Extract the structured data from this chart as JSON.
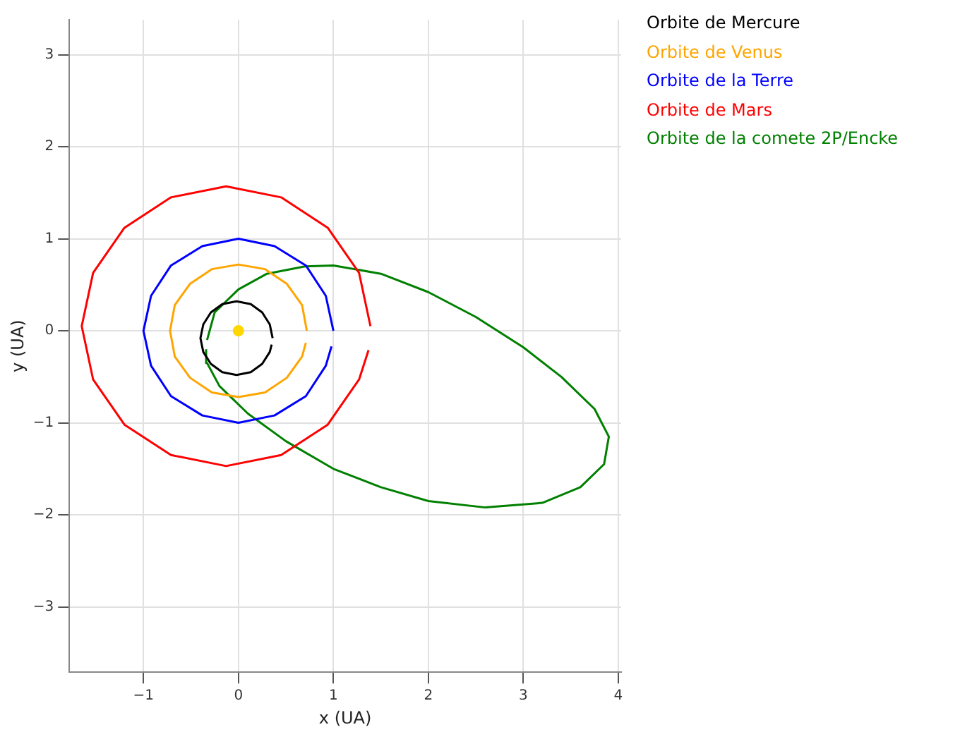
{
  "chart_data": {
    "type": "line",
    "xlabel": "x (UA)",
    "ylabel": "y (UA)",
    "xlim": [
      -1.78,
      4.03
    ],
    "ylim": [
      -3.71,
      3.38
    ],
    "xticks": [
      {
        "value": -1,
        "label": "−1"
      },
      0,
      1,
      2,
      3,
      4
    ],
    "yticks": [
      {
        "value": -3,
        "label": "−3"
      },
      {
        "value": -2,
        "label": "−2"
      },
      {
        "value": -1,
        "label": "−1"
      },
      0,
      1,
      2,
      3
    ],
    "grid": true,
    "marker": "none",
    "line_style": "solid",
    "series": [
      {
        "name": "Orbite de Mercure",
        "color": "#000000",
        "x": [
          0.36,
          0.33,
          0.25,
          0.13,
          -0.02,
          -0.17,
          -0.29,
          -0.37,
          -0.4,
          -0.37,
          -0.29,
          -0.17,
          -0.02,
          0.13,
          0.25,
          0.33,
          0.35
        ],
        "values": [
          -0.08,
          0.07,
          0.2,
          0.29,
          0.32,
          0.29,
          0.2,
          0.07,
          -0.08,
          -0.23,
          -0.36,
          -0.45,
          -0.48,
          -0.45,
          -0.36,
          -0.23,
          -0.15
        ]
      },
      {
        "name": "Orbite de Venus",
        "color": "#ffa500",
        "x": [
          0.72,
          0.67,
          0.51,
          0.28,
          0,
          -0.28,
          -0.51,
          -0.67,
          -0.72,
          -0.67,
          -0.51,
          -0.28,
          0,
          0.28,
          0.51,
          0.67,
          0.71
        ],
        "values": [
          0,
          0.28,
          0.51,
          0.67,
          0.72,
          0.67,
          0.51,
          0.28,
          0,
          -0.28,
          -0.51,
          -0.67,
          -0.72,
          -0.67,
          -0.51,
          -0.28,
          -0.13
        ]
      },
      {
        "name": "Orbite de la Terre",
        "color": "#0000ff",
        "x": [
          1,
          0.92,
          0.71,
          0.38,
          0,
          -0.38,
          -0.71,
          -0.92,
          -1,
          -0.92,
          -0.71,
          -0.38,
          0,
          0.38,
          0.71,
          0.92,
          0.98
        ],
        "values": [
          0,
          0.38,
          0.71,
          0.92,
          1,
          0.92,
          0.71,
          0.38,
          0,
          -0.38,
          -0.71,
          -0.92,
          -1,
          -0.92,
          -0.71,
          -0.38,
          -0.17
        ]
      },
      {
        "name": "Orbite de Mars",
        "color": "#ff0000",
        "x": [
          1.39,
          1.27,
          0.94,
          0.45,
          -0.13,
          -0.71,
          -1.2,
          -1.53,
          -1.65,
          -1.53,
          -1.2,
          -0.71,
          -0.13,
          0.45,
          0.94,
          1.27,
          1.37
        ],
        "values": [
          0.05,
          0.63,
          1.12,
          1.45,
          1.57,
          1.45,
          1.12,
          0.63,
          0.05,
          -0.53,
          -1.02,
          -1.35,
          -1.47,
          -1.35,
          -1.02,
          -0.53,
          -0.21
        ]
      },
      {
        "name": "Orbite de la comete 2P/Encke",
        "color": "#008000",
        "x": [
          -0.33,
          -0.25,
          0,
          0.3,
          0.7,
          1,
          1.5,
          2,
          2.5,
          3,
          3.4,
          3.75,
          3.9,
          3.85,
          3.6,
          3.2,
          2.6,
          2,
          1.5,
          1,
          0.5,
          0.1,
          -0.2,
          -0.33,
          -0.34
        ],
        "values": [
          -0.1,
          0.2,
          0.45,
          0.62,
          0.7,
          0.71,
          0.62,
          0.42,
          0.15,
          -0.18,
          -0.5,
          -0.85,
          -1.15,
          -1.45,
          -1.7,
          -1.87,
          -1.92,
          -1.85,
          -1.7,
          -1.5,
          -1.2,
          -0.9,
          -0.6,
          -0.35,
          -0.2
        ]
      },
      {
        "type": "scatter",
        "marker": "circle",
        "color": "#ffd700",
        "x": [
          0
        ],
        "values": [
          0
        ]
      }
    ]
  }
}
